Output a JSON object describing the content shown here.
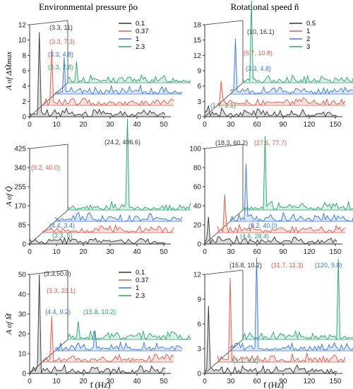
{
  "columns": {
    "left": "Environmental pressure p̃o",
    "right": "Rotational speed ñ"
  },
  "xlabel": "f (Hz)",
  "chart_data": [
    {
      "type": "line",
      "ylabel": "A of ΔM̃max",
      "yticks": [
        0,
        2,
        4,
        6,
        8,
        10,
        12
      ],
      "xticks": [
        0,
        10,
        20,
        30,
        40,
        50
      ],
      "ylim": [
        0,
        12
      ],
      "xlim": [
        0,
        50
      ],
      "series": [
        {
          "name": "0.1",
          "color": "#333333",
          "peak_f": 3.3,
          "peak_A": 11
        },
        {
          "name": "0.37",
          "color": "#e05a4a",
          "peak_f": 3.3,
          "peak_A": 7.3
        },
        {
          "name": "1",
          "color": "#3a78d8",
          "peak_f": 3.3,
          "peak_A": 4.8
        },
        {
          "name": "2.3",
          "color": "#2aa66f",
          "peak_f": 3.3,
          "peak_A": 2.8
        }
      ],
      "annotations": [
        "(3.3, 11)",
        "(3.3, 7.3)",
        "(3.3, 4.8)",
        "(3.3, 2.8)"
      ]
    },
    {
      "type": "line",
      "ylabel": "",
      "yticks": [
        0,
        3,
        6,
        9,
        12,
        15,
        18
      ],
      "xticks": [
        0,
        30,
        60,
        90,
        120,
        150
      ],
      "ylim": [
        0,
        18
      ],
      "xlim": [
        0,
        150
      ],
      "series": [
        {
          "name": "0.5",
          "color": "#333333",
          "peak_f": 1.7,
          "peak_A": 2.1
        },
        {
          "name": "1",
          "color": "#e05a4a",
          "peak_f": 3.3,
          "peak_A": 4.8
        },
        {
          "name": "2",
          "color": "#3a78d8",
          "peak_f": 6.7,
          "peak_A": 10.8
        },
        {
          "name": "3",
          "color": "#2aa66f",
          "peak_f": 10,
          "peak_A": 16.1
        }
      ],
      "annotations": [
        "(10, 16.1)",
        "(6.7, 10.8)",
        "(3.3, 4.8)",
        "(1.7, 2.1)"
      ]
    },
    {
      "type": "line",
      "ylabel": "A of Q̃",
      "yticks": [
        0,
        85,
        170,
        255,
        340,
        425
      ],
      "xticks": [
        0,
        10,
        20,
        30,
        40,
        50
      ],
      "ylim": [
        0,
        425
      ],
      "xlim": [
        0,
        50
      ],
      "series": [
        {
          "name": "0.1",
          "color": "#333333",
          "peak_f": 3.3,
          "peak_A": 5
        },
        {
          "name": "0.37",
          "color": "#e05a4a",
          "peak_f": 4.4,
          "peak_A": 3.4
        },
        {
          "name": "1",
          "color": "#3a78d8",
          "peak_f": 9.2,
          "peak_A": 40.0
        },
        {
          "name": "2.3",
          "color": "#2aa66f",
          "peak_f": 24.2,
          "peak_A": 406.6
        }
      ],
      "annotations": [
        "(24.2, 406.6)",
        "(9.2, 40.0)",
        "(4.4, 3.4)",
        "(3.3, 5)"
      ]
    },
    {
      "type": "line",
      "ylabel": "",
      "yticks": [
        0,
        20,
        40,
        60,
        80,
        100
      ],
      "xticks": [
        0,
        30,
        60,
        90,
        120,
        150
      ],
      "ylim": [
        0,
        100
      ],
      "xlim": [
        0,
        150
      ],
      "series": [
        {
          "name": "0.5",
          "color": "#333333",
          "peak_f": 4.6,
          "peak_A": 28.4
        },
        {
          "name": "1",
          "color": "#e05a4a",
          "peak_f": 9.2,
          "peak_A": 40.0
        },
        {
          "name": "2",
          "color": "#3a78d8",
          "peak_f": 18.3,
          "peak_A": 60.2
        },
        {
          "name": "3",
          "color": "#2aa66f",
          "peak_f": 27.5,
          "peak_A": 77.7
        }
      ],
      "annotations": [
        "(18.3, 60.2)",
        "(27.5, 77.7)",
        "(9.2, 40.0)",
        "(4.6, 28.4)"
      ]
    },
    {
      "type": "line",
      "ylabel": "A of M̃",
      "yticks": [
        0,
        10,
        20,
        30,
        40,
        50
      ],
      "xticks": [
        0,
        10,
        20,
        30,
        40,
        50
      ],
      "ylim": [
        0,
        50
      ],
      "xlim": [
        0,
        50
      ],
      "series": [
        {
          "name": "0.1",
          "color": "#333333",
          "peak_f": 3.3,
          "peak_A": 50.0
        },
        {
          "name": "0.37",
          "color": "#e05a4a",
          "peak_f": 3.3,
          "peak_A": 23.1
        },
        {
          "name": "1",
          "color": "#3a78d8",
          "peak_f": 15.8,
          "peak_A": 10.2
        },
        {
          "name": "2.3",
          "color": "#2aa66f",
          "peak_f": 4.4,
          "peak_A": 9.2
        }
      ],
      "annotations": [
        "(3.3,50.0)",
        "(3.3, 23.1)",
        "(4.4, 9.2)",
        "(15.8, 10.2)"
      ]
    },
    {
      "type": "line",
      "ylabel": "",
      "yticks": [
        0,
        3,
        6,
        9,
        12
      ],
      "xticks": [
        0,
        30,
        60,
        90,
        120,
        150
      ],
      "ylim": [
        0,
        12
      ],
      "xlim": [
        0,
        150
      ],
      "series": [
        {
          "name": "0.5",
          "color": "#333333",
          "peak_f": 1.1,
          "peak_A": 8.2
        },
        {
          "name": "1",
          "color": "#e05a4a",
          "peak_f": 15.8,
          "peak_A": 10.2
        },
        {
          "name": "2",
          "color": "#3a78d8",
          "peak_f": 31.7,
          "peak_A": 11.3
        },
        {
          "name": "3",
          "color": "#2aa66f",
          "peak_f": 120,
          "peak_A": 9.8
        }
      ],
      "annotations": [
        "(15.8, 10.2)",
        "(31.7, 11.3)",
        "(120, 9.8)",
        "(1.1, 8.2)"
      ]
    }
  ]
}
